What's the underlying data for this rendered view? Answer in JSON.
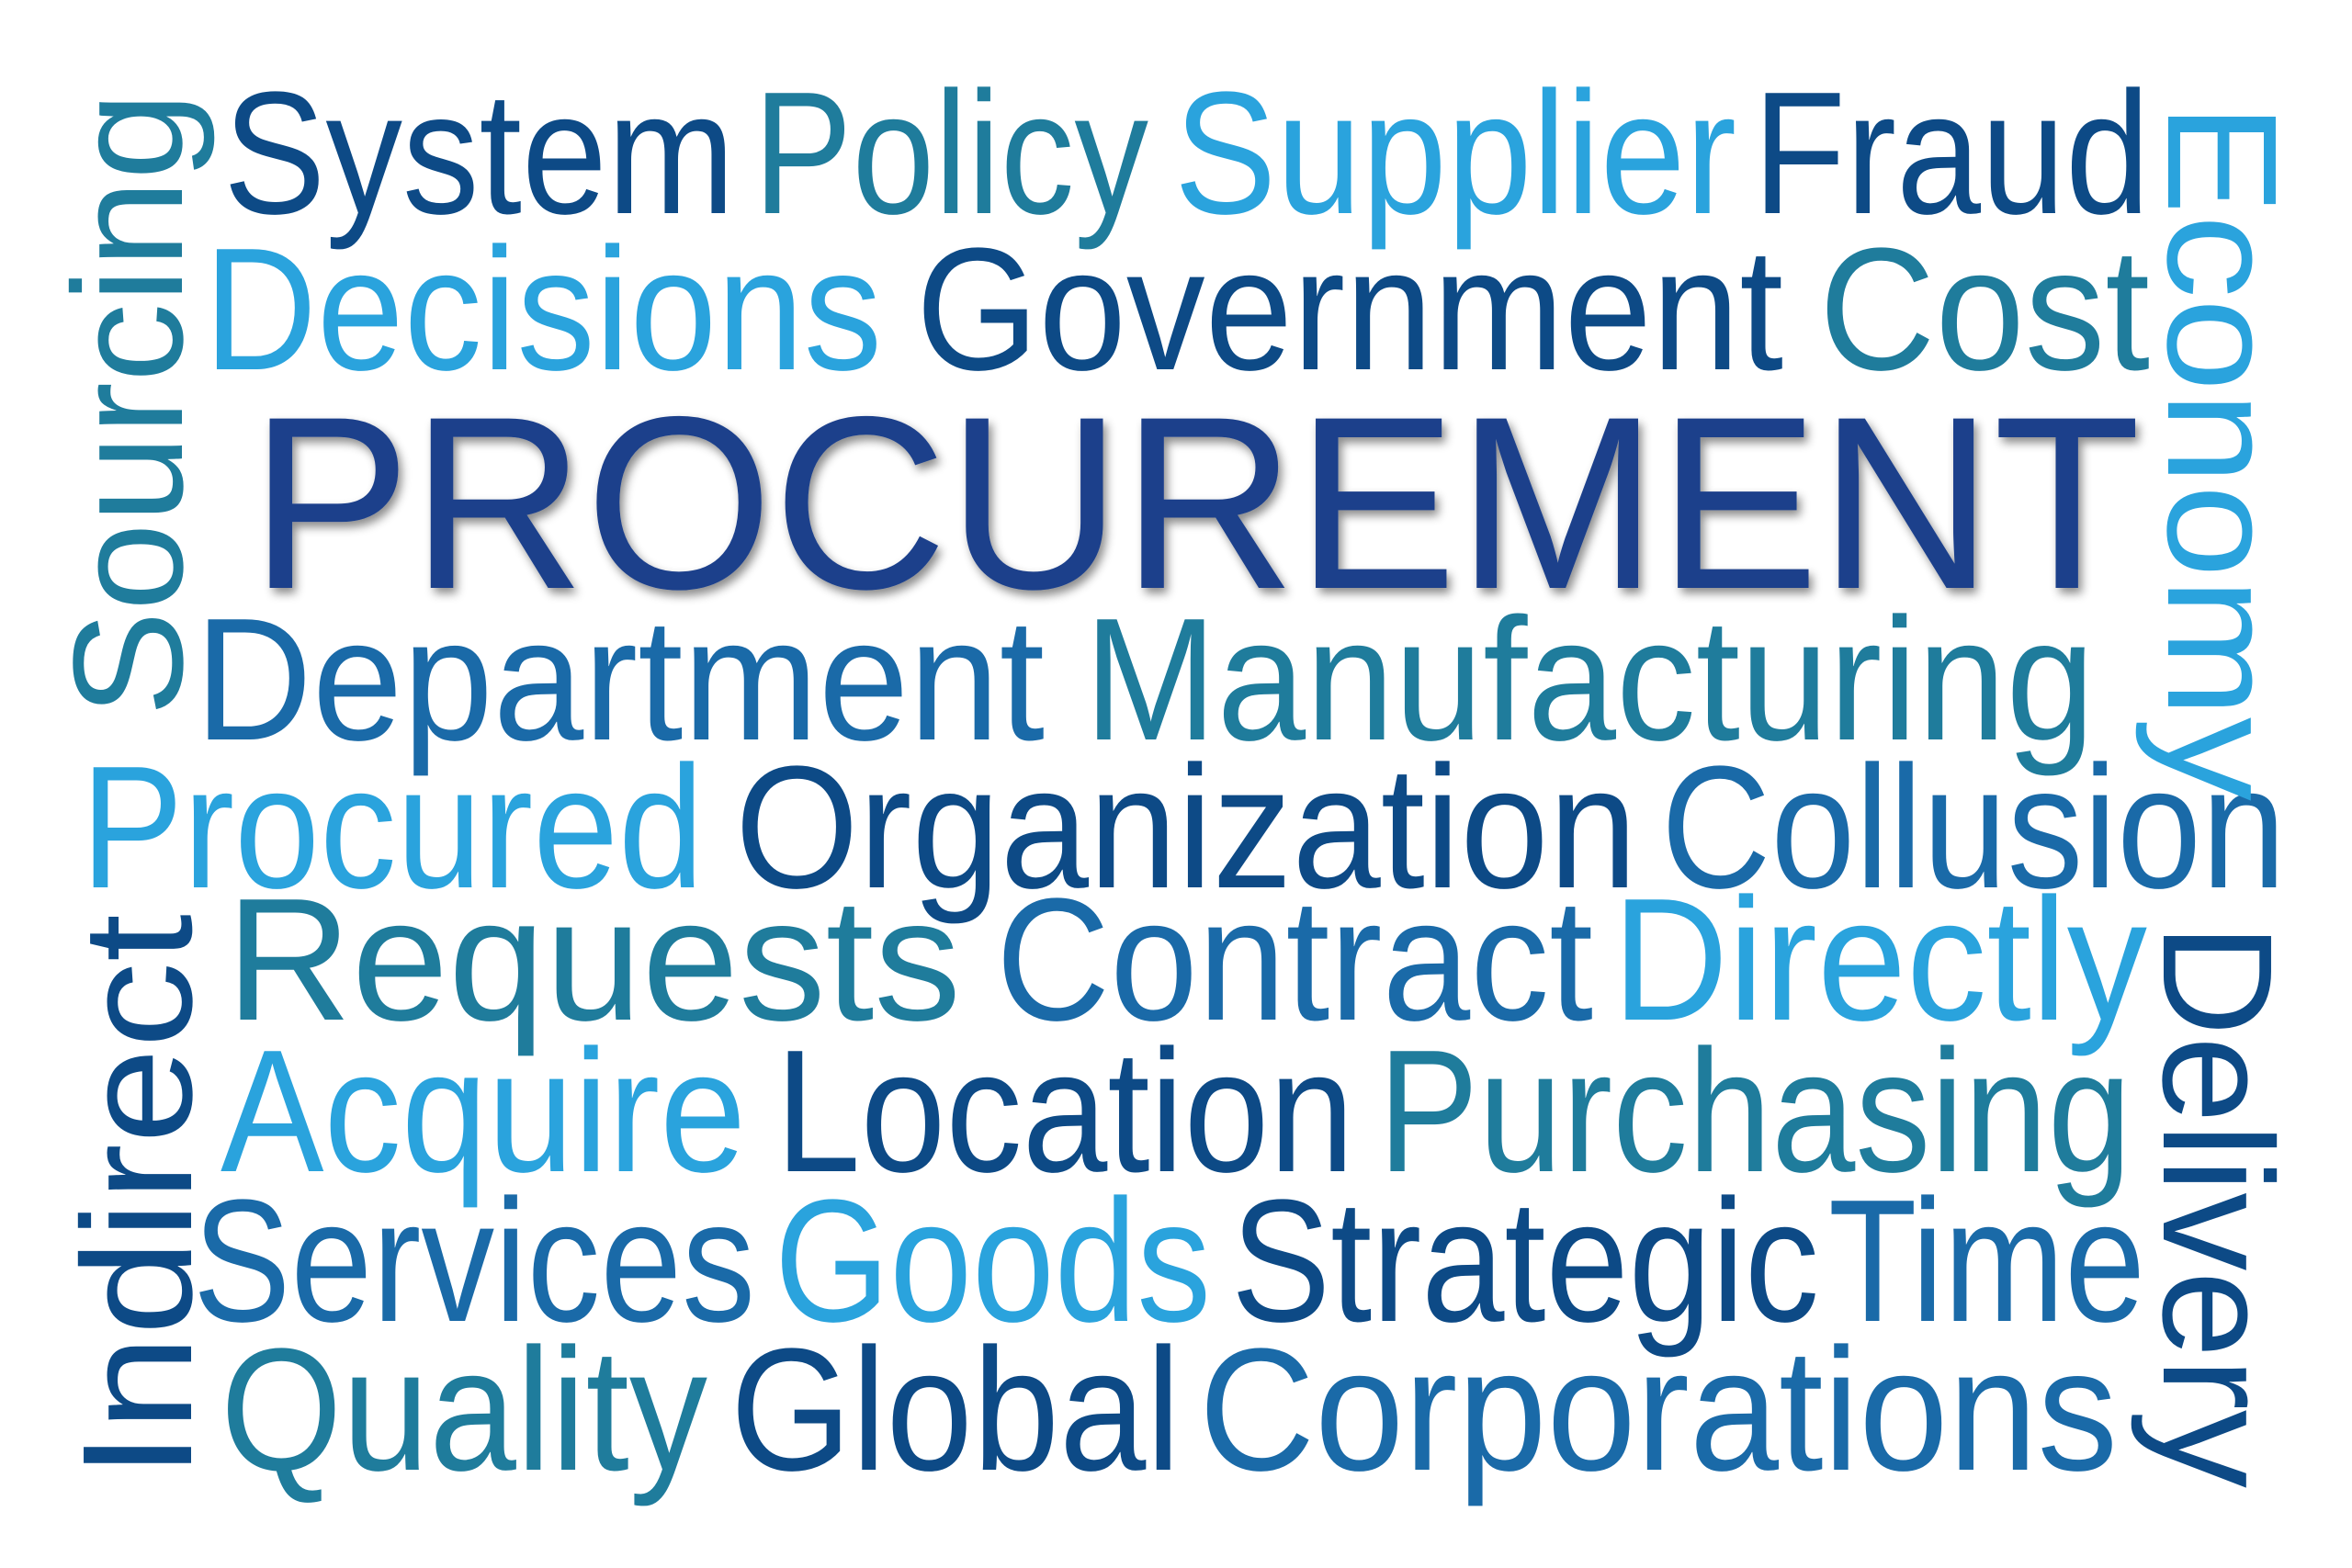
{
  "title": "PROCUREMENT",
  "palette": {
    "navy": "#1b3f8b",
    "dark": "#0d4a86",
    "mid": "#1a6aa8",
    "teal": "#1f7c9c",
    "light": "#2aa3dd"
  },
  "words": [
    {
      "id": "word-system",
      "text": "System",
      "color": "dark"
    },
    {
      "id": "word-policy",
      "text": "Policy",
      "color": "teal"
    },
    {
      "id": "word-supplier",
      "text": "Supplier",
      "color": "light"
    },
    {
      "id": "word-fraud",
      "text": "Fraud",
      "color": "dark"
    },
    {
      "id": "word-decisions",
      "text": "Decisions",
      "color": "light"
    },
    {
      "id": "word-government",
      "text": "Government",
      "color": "dark"
    },
    {
      "id": "word-cost",
      "text": "Cost",
      "color": "teal"
    },
    {
      "id": "word-procurement",
      "text": "PROCUREMENT",
      "color": "navy"
    },
    {
      "id": "word-department",
      "text": "Department",
      "color": "mid"
    },
    {
      "id": "word-manufacturing",
      "text": "Manufacturing",
      "color": "teal"
    },
    {
      "id": "word-procured",
      "text": "Procured",
      "color": "light"
    },
    {
      "id": "word-organization",
      "text": "Organization",
      "color": "dark"
    },
    {
      "id": "word-collusion",
      "text": "Collusion",
      "color": "mid"
    },
    {
      "id": "word-requests",
      "text": "Requests",
      "color": "teal"
    },
    {
      "id": "word-contract",
      "text": "Contract",
      "color": "mid"
    },
    {
      "id": "word-directly",
      "text": "Directly",
      "color": "light"
    },
    {
      "id": "word-acquire",
      "text": "Acquire",
      "color": "light"
    },
    {
      "id": "word-location",
      "text": "Location",
      "color": "dark"
    },
    {
      "id": "word-purchasing",
      "text": "Purchasing",
      "color": "teal"
    },
    {
      "id": "word-services",
      "text": "Services",
      "color": "mid"
    },
    {
      "id": "word-goods",
      "text": "Goods",
      "color": "light"
    },
    {
      "id": "word-strategic",
      "text": "Strategic",
      "color": "dark"
    },
    {
      "id": "word-time",
      "text": "Time",
      "color": "mid"
    },
    {
      "id": "word-quality",
      "text": "Quality",
      "color": "teal"
    },
    {
      "id": "word-global",
      "text": "Global",
      "color": "dark"
    },
    {
      "id": "word-corporations",
      "text": "Corporations",
      "color": "mid"
    },
    {
      "id": "word-sourcing",
      "text": "Sourcing",
      "color": "teal"
    },
    {
      "id": "word-indirect",
      "text": "Indirect",
      "color": "dark"
    },
    {
      "id": "word-economy",
      "text": "Economy",
      "color": "light"
    },
    {
      "id": "word-delivery",
      "text": "Delivery",
      "color": "dark"
    }
  ]
}
